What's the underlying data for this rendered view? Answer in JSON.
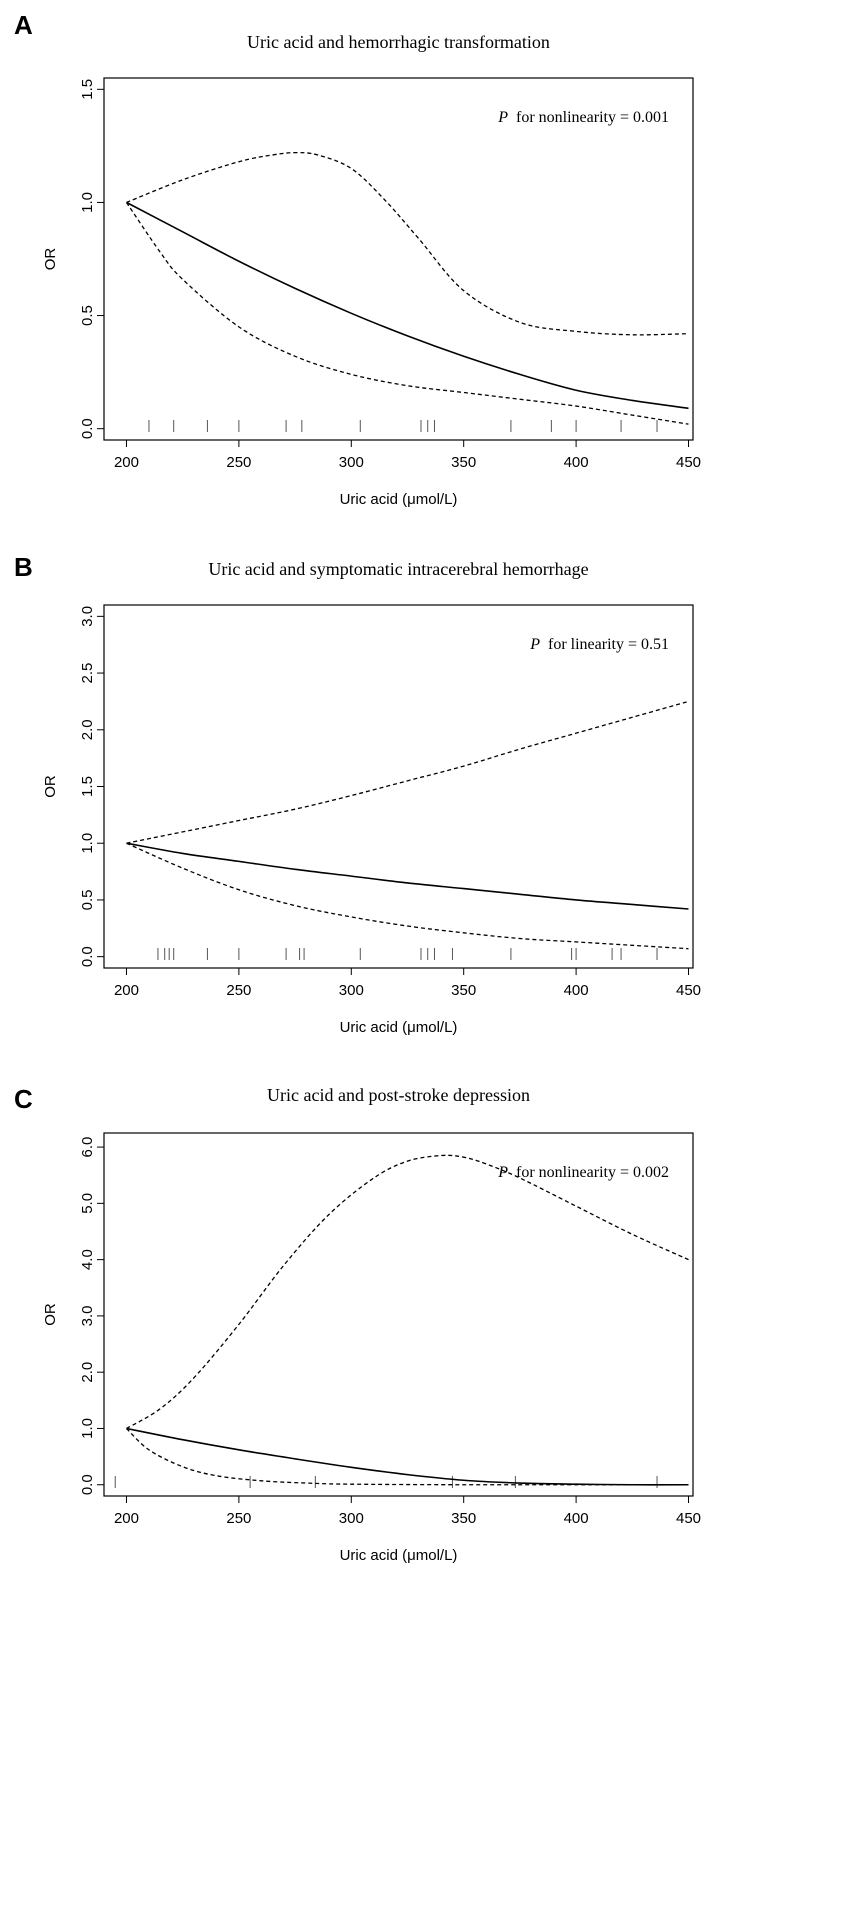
{
  "chart_data": [
    {
      "panel": "A",
      "type": "line",
      "title": "Uric acid and hemorrhagic transformation",
      "xlabel": "Uric acid (μmol/L)",
      "ylabel": "OR",
      "xlim": [
        190,
        452
      ],
      "ylim": [
        -0.05,
        1.55
      ],
      "xticks": [
        200,
        250,
        300,
        350,
        400,
        450
      ],
      "yticks": [
        0.0,
        0.5,
        1.0,
        1.5
      ],
      "ytick_labels": [
        "0.0",
        "0.5",
        "1.0",
        "1.5"
      ],
      "annotation": {
        "p": "P",
        "text": "for nonlinearity = 0.001",
        "position": "top-right"
      },
      "series": [
        {
          "name": "OR",
          "style": "solid",
          "x": [
            200,
            225,
            250,
            275,
            300,
            325,
            350,
            375,
            400,
            425,
            450
          ],
          "y": [
            1.0,
            0.87,
            0.74,
            0.62,
            0.51,
            0.41,
            0.32,
            0.24,
            0.17,
            0.125,
            0.09
          ]
        },
        {
          "name": "Upper 95% CI",
          "style": "dashed",
          "x": [
            200,
            225,
            250,
            265,
            275,
            285,
            300,
            315,
            330,
            350,
            375,
            400,
            425,
            450
          ],
          "y": [
            1.0,
            1.1,
            1.18,
            1.21,
            1.22,
            1.21,
            1.15,
            1.01,
            0.84,
            0.61,
            0.47,
            0.43,
            0.415,
            0.42
          ]
        },
        {
          "name": "Lower 95% CI",
          "style": "dashed",
          "x": [
            200,
            215,
            225,
            250,
            275,
            300,
            325,
            350,
            375,
            400,
            425,
            450
          ],
          "y": [
            1.0,
            0.78,
            0.66,
            0.45,
            0.32,
            0.24,
            0.19,
            0.16,
            0.13,
            0.1,
            0.06,
            0.02
          ]
        }
      ],
      "rug": [
        210,
        221,
        236,
        250,
        271,
        278,
        304,
        331,
        334,
        337,
        371,
        389,
        400,
        420,
        436
      ]
    },
    {
      "panel": "B",
      "type": "line",
      "title": "Uric acid and symptomatic intracerebral hemorrhage",
      "xlabel": "Uric acid (μmol/L)",
      "ylabel": "OR",
      "xlim": [
        190,
        452
      ],
      "ylim": [
        -0.1,
        3.1
      ],
      "xticks": [
        200,
        250,
        300,
        350,
        400,
        450
      ],
      "yticks": [
        0.0,
        0.5,
        1.0,
        1.5,
        2.0,
        2.5,
        3.0
      ],
      "ytick_labels": [
        "0.0",
        "0.5",
        "1.0",
        "1.5",
        "2.0",
        "2.5",
        "3.0"
      ],
      "annotation": {
        "p": "P",
        "text": "for linearity = 0.51",
        "position": "top-right"
      },
      "series": [
        {
          "name": "OR",
          "style": "solid",
          "x": [
            200,
            225,
            250,
            275,
            300,
            325,
            350,
            375,
            400,
            425,
            450
          ],
          "y": [
            1.0,
            0.91,
            0.84,
            0.77,
            0.71,
            0.65,
            0.6,
            0.55,
            0.5,
            0.46,
            0.42
          ]
        },
        {
          "name": "Upper 95% CI",
          "style": "dashed",
          "x": [
            200,
            225,
            250,
            275,
            300,
            325,
            350,
            375,
            400,
            425,
            450
          ],
          "y": [
            1.0,
            1.1,
            1.2,
            1.3,
            1.42,
            1.55,
            1.68,
            1.83,
            1.97,
            2.11,
            2.25
          ]
        },
        {
          "name": "Lower 95% CI",
          "style": "dashed",
          "x": [
            200,
            225,
            250,
            275,
            300,
            325,
            350,
            375,
            400,
            425,
            450
          ],
          "y": [
            1.0,
            0.78,
            0.59,
            0.45,
            0.35,
            0.27,
            0.21,
            0.16,
            0.13,
            0.1,
            0.07
          ]
        }
      ],
      "rug": [
        214,
        217,
        219,
        221,
        236,
        250,
        271,
        277,
        279,
        304,
        331,
        334,
        337,
        345,
        371,
        398,
        400,
        416,
        420,
        436
      ]
    },
    {
      "panel": "C",
      "type": "line",
      "title": "Uric acid and post-stroke depression",
      "xlabel": "Uric acid (μmol/L)",
      "ylabel": "OR",
      "xlim": [
        190,
        452
      ],
      "ylim": [
        -0.2,
        6.25
      ],
      "xticks": [
        200,
        250,
        300,
        350,
        400,
        450
      ],
      "yticks": [
        0,
        1,
        2,
        3,
        4,
        5,
        6
      ],
      "ytick_labels": [
        "0.0",
        "1.0",
        "2.0",
        "3.0",
        "4.0",
        "5.0",
        "6.0"
      ],
      "annotation": {
        "p": "P",
        "text": "for nonlinearity = 0.002",
        "position": "top-right"
      },
      "series": [
        {
          "name": "OR",
          "style": "solid",
          "x": [
            200,
            225,
            250,
            275,
            300,
            325,
            350,
            375,
            400,
            425,
            450
          ],
          "y": [
            1.0,
            0.8,
            0.62,
            0.46,
            0.31,
            0.18,
            0.08,
            0.03,
            0.01,
            0.0,
            0.0
          ]
        },
        {
          "name": "Upper 95% CI",
          "style": "dashed",
          "x": [
            200,
            215,
            230,
            250,
            270,
            290,
            310,
            325,
            340,
            350,
            360,
            375,
            400,
            425,
            450
          ],
          "y": [
            1.0,
            1.35,
            1.9,
            2.85,
            3.9,
            4.8,
            5.45,
            5.75,
            5.85,
            5.82,
            5.7,
            5.45,
            4.95,
            4.45,
            4.0
          ]
        },
        {
          "name": "Lower 95% CI",
          "style": "dashed",
          "x": [
            200,
            210,
            225,
            240,
            260,
            280,
            300,
            350,
            400,
            450
          ],
          "y": [
            1.0,
            0.62,
            0.32,
            0.16,
            0.07,
            0.03,
            0.01,
            0.0,
            0.0,
            0.0
          ]
        }
      ],
      "rug": [
        195,
        255,
        284,
        345,
        373,
        436
      ]
    }
  ]
}
